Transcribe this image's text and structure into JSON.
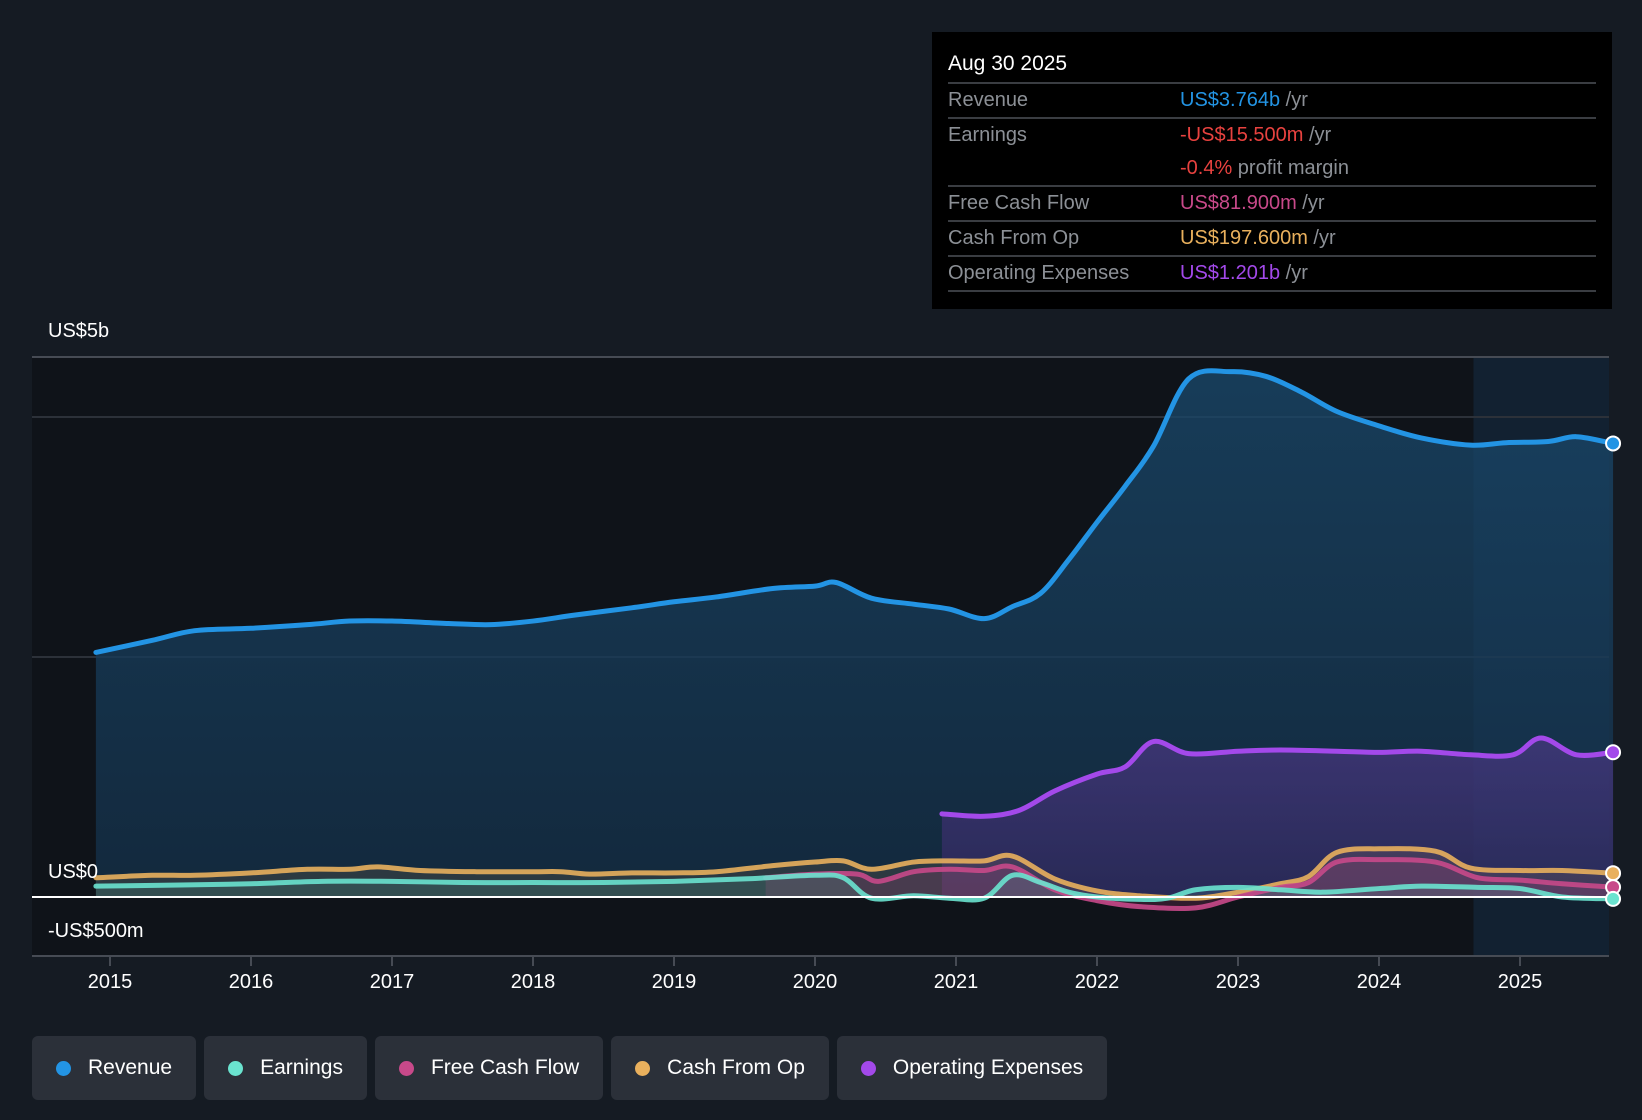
{
  "tooltip": {
    "date": "Aug 30 2025",
    "rows": [
      {
        "label": "Revenue",
        "value": "US$3.764b",
        "unit": " /yr",
        "color": "#2394e4"
      },
      {
        "label": "Earnings",
        "value": "-US$15.500m",
        "unit": " /yr",
        "color": "#e8423f",
        "extra_value": "-0.4%",
        "extra_unit": " profit margin"
      },
      {
        "label": "Free Cash Flow",
        "value": "US$81.900m",
        "unit": " /yr",
        "color": "#c8498a"
      },
      {
        "label": "Cash From Op",
        "value": "US$197.600m",
        "unit": " /yr",
        "color": "#e9b05d"
      },
      {
        "label": "Operating Expenses",
        "value": "US$1.201b",
        "unit": " /yr",
        "color": "#a349ea"
      }
    ]
  },
  "legend": [
    {
      "label": "Revenue",
      "color": "#2394e4"
    },
    {
      "label": "Earnings",
      "color": "#6ae3cf"
    },
    {
      "label": "Free Cash Flow",
      "color": "#c8498a"
    },
    {
      "label": "Cash From Op",
      "color": "#e9b05d"
    },
    {
      "label": "Operating Expenses",
      "color": "#a349ea"
    }
  ],
  "chart_data": {
    "type": "area",
    "title": "",
    "xlabel": "",
    "ylabel": "",
    "y_tick_labels": [
      "US$5b",
      "US$0",
      "-US$500m"
    ],
    "x_tick_labels": [
      "2015",
      "2016",
      "2017",
      "2018",
      "2019",
      "2020",
      "2021",
      "2022",
      "2023",
      "2024",
      "2025"
    ],
    "xlim": [
      2014.55,
      2025.68
    ],
    "ylim": [
      -0.5,
      5.0
    ],
    "highlight_from": 2024.67,
    "grid": true,
    "legend_position": "bottom-left",
    "series": [
      {
        "name": "Revenue",
        "color": "#2394e4",
        "x": [
          2014.9,
          2015.3,
          2015.6,
          2016.0,
          2016.4,
          2016.7,
          2017.0,
          2017.4,
          2017.7,
          2018.0,
          2018.3,
          2018.7,
          2019.0,
          2019.3,
          2019.7,
          2020.0,
          2020.15,
          2020.4,
          2020.7,
          2020.95,
          2021.2,
          2021.4,
          2021.6,
          2021.8,
          2022.0,
          2022.2,
          2022.4,
          2022.65,
          2022.95,
          2023.2,
          2023.45,
          2023.7,
          2024.0,
          2024.3,
          2024.65,
          2024.9,
          2025.2,
          2025.4,
          2025.66
        ],
        "values": [
          2.03,
          2.13,
          2.21,
          2.23,
          2.26,
          2.29,
          2.29,
          2.27,
          2.26,
          2.29,
          2.34,
          2.4,
          2.45,
          2.49,
          2.56,
          2.58,
          2.61,
          2.48,
          2.43,
          2.39,
          2.31,
          2.41,
          2.52,
          2.8,
          3.11,
          3.41,
          3.74,
          4.3,
          4.36,
          4.32,
          4.19,
          4.03,
          3.91,
          3.81,
          3.75,
          3.77,
          3.78,
          3.82,
          3.764
        ]
      },
      {
        "name": "Earnings",
        "color": "#6ae3cf",
        "x": [
          2014.9,
          2015.5,
          2016.0,
          2016.5,
          2017.0,
          2017.5,
          2018.0,
          2018.5,
          2019.0,
          2019.5,
          2020.0,
          2020.2,
          2020.4,
          2020.7,
          2020.95,
          2021.2,
          2021.4,
          2021.6,
          2021.8,
          2022.0,
          2022.3,
          2022.5,
          2022.7,
          2023.0,
          2023.3,
          2023.6,
          2024.0,
          2024.3,
          2024.7,
          2025.0,
          2025.3,
          2025.66
        ],
        "values": [
          0.09,
          0.1,
          0.11,
          0.13,
          0.13,
          0.12,
          0.12,
          0.12,
          0.13,
          0.15,
          0.18,
          0.16,
          -0.01,
          0.01,
          -0.01,
          -0.01,
          0.18,
          0.12,
          0.04,
          0.0,
          -0.02,
          -0.01,
          0.06,
          0.08,
          0.06,
          0.04,
          0.07,
          0.09,
          0.08,
          0.07,
          0.0,
          -0.0155
        ]
      },
      {
        "name": "Free Cash Flow",
        "color": "#c8498a",
        "x": [
          2019.65,
          2020.0,
          2020.3,
          2020.45,
          2020.7,
          2020.95,
          2021.2,
          2021.4,
          2021.7,
          2022.0,
          2022.3,
          2022.7,
          2023.0,
          2023.3,
          2023.5,
          2023.7,
          2024.0,
          2024.4,
          2024.7,
          2025.0,
          2025.3,
          2025.66
        ],
        "values": [
          0.16,
          0.19,
          0.19,
          0.13,
          0.21,
          0.23,
          0.22,
          0.25,
          0.06,
          -0.03,
          -0.08,
          -0.09,
          0.0,
          0.08,
          0.12,
          0.29,
          0.31,
          0.29,
          0.16,
          0.14,
          0.11,
          0.0819
        ]
      },
      {
        "name": "Cash From Op",
        "color": "#e9b05d",
        "x": [
          2014.9,
          2015.3,
          2015.6,
          2016.0,
          2016.4,
          2016.7,
          2016.9,
          2017.2,
          2017.6,
          2018.0,
          2018.2,
          2018.4,
          2018.7,
          2019.0,
          2019.3,
          2019.7,
          2020.0,
          2020.2,
          2020.4,
          2020.7,
          2020.95,
          2021.2,
          2021.4,
          2021.7,
          2022.0,
          2022.3,
          2022.7,
          2023.0,
          2023.3,
          2023.5,
          2023.7,
          2024.0,
          2024.4,
          2024.65,
          2025.0,
          2025.3,
          2025.66
        ],
        "values": [
          0.16,
          0.18,
          0.18,
          0.2,
          0.23,
          0.23,
          0.25,
          0.22,
          0.21,
          0.21,
          0.21,
          0.19,
          0.2,
          0.2,
          0.21,
          0.26,
          0.29,
          0.3,
          0.23,
          0.29,
          0.3,
          0.3,
          0.34,
          0.15,
          0.05,
          0.01,
          -0.01,
          0.04,
          0.11,
          0.17,
          0.37,
          0.4,
          0.38,
          0.24,
          0.22,
          0.22,
          0.1976
        ]
      },
      {
        "name": "Operating Expenses",
        "color": "#a349ea",
        "x": [
          2020.9,
          2021.2,
          2021.45,
          2021.7,
          2022.0,
          2022.2,
          2022.4,
          2022.65,
          2023.0,
          2023.3,
          2023.7,
          2024.0,
          2024.3,
          2024.65,
          2024.95,
          2025.15,
          2025.4,
          2025.66
        ],
        "values": [
          0.69,
          0.67,
          0.72,
          0.88,
          1.02,
          1.08,
          1.29,
          1.19,
          1.21,
          1.22,
          1.21,
          1.2,
          1.21,
          1.18,
          1.18,
          1.32,
          1.18,
          1.201
        ]
      }
    ]
  }
}
